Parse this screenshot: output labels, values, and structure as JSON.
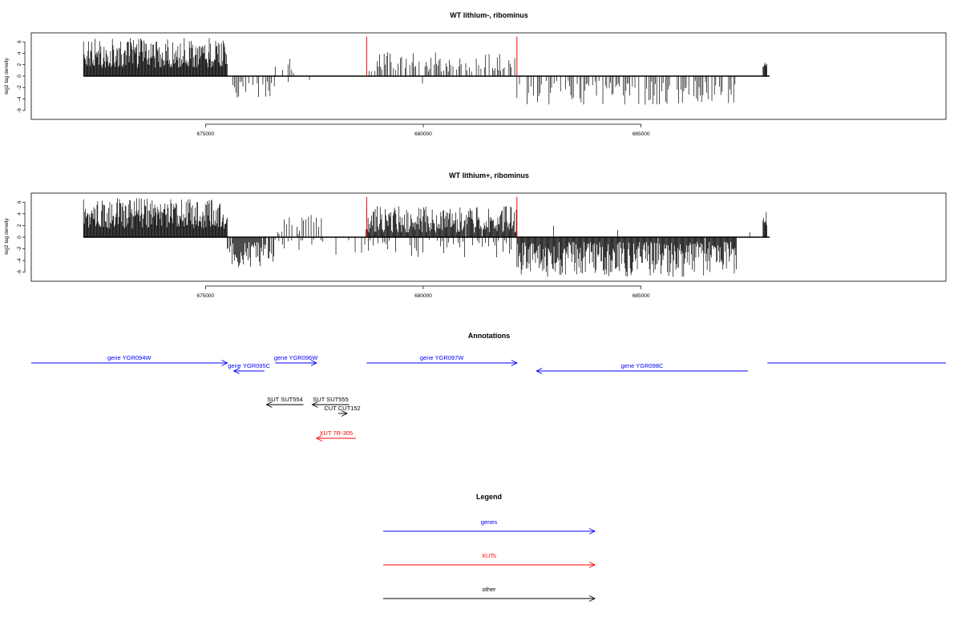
{
  "chart_data": [
    {
      "type": "bar",
      "title": "WT lithium-, ribominus",
      "ylabel": "log2 tag density",
      "xlim": [
        671000,
        692000
      ],
      "ylim": [
        -7,
        7
      ],
      "x_ticks": [
        675000,
        680000,
        685000
      ],
      "x_tick_labels": [
        "675000",
        "680000",
        "685000"
      ],
      "y_ticks": [
        -6,
        -4,
        -2,
        0,
        2,
        4,
        6
      ],
      "y_tick_labels": [
        "-6",
        "-4",
        "-2",
        "0",
        "2",
        "4",
        "6"
      ],
      "markers": [
        678700,
        682150
      ],
      "segments": [
        {
          "from": 672200,
          "to": 675500,
          "sign": 1,
          "min": 1.5,
          "max": 6.7,
          "density": 1.0
        },
        {
          "from": 675500,
          "to": 676600,
          "sign": -1,
          "min": 0.8,
          "max": 3.8,
          "density": 0.45
        },
        {
          "from": 676600,
          "to": 677700,
          "sign": 1,
          "min": 0.5,
          "max": 3.3,
          "density": 0.35
        },
        {
          "from": 676700,
          "to": 677700,
          "sign": -1,
          "min": 0.4,
          "max": 2.0,
          "density": 0.15
        },
        {
          "from": 677700,
          "to": 678700,
          "sign": -1,
          "min": 0.3,
          "max": 1.5,
          "density": 0.1
        },
        {
          "from": 678700,
          "to": 682150,
          "sign": 1,
          "min": 0.8,
          "max": 4.2,
          "density": 0.55
        },
        {
          "from": 679000,
          "to": 682150,
          "sign": -1,
          "min": 0.3,
          "max": 2.0,
          "density": 0.06
        },
        {
          "from": 682150,
          "to": 687200,
          "sign": -1,
          "min": 0.8,
          "max": 5.0,
          "density": 0.5
        },
        {
          "from": 682500,
          "to": 687200,
          "sign": 1,
          "min": 0.3,
          "max": 1.2,
          "density": 0.03
        },
        {
          "from": 687200,
          "to": 687800,
          "sign": 1,
          "min": 0.3,
          "max": 0.8,
          "density": 0.05
        },
        {
          "from": 687800,
          "to": 687900,
          "sign": 1,
          "min": 1.5,
          "max": 2.4,
          "density": 1.0
        }
      ]
    },
    {
      "type": "bar",
      "title": "WT lithium+, ribominus",
      "ylabel": "log2 tag density",
      "xlim": [
        671000,
        692000
      ],
      "ylim": [
        -7,
        7
      ],
      "x_ticks": [
        675000,
        680000,
        685000
      ],
      "x_tick_labels": [
        "675000",
        "680000",
        "685000"
      ],
      "y_ticks": [
        -6,
        -4,
        -2,
        0,
        2,
        4,
        6
      ],
      "y_tick_labels": [
        "-6",
        "-4",
        "-2",
        "0",
        "2",
        "4",
        "6"
      ],
      "markers": [
        678700,
        682150
      ],
      "segments": [
        {
          "from": 672200,
          "to": 675500,
          "sign": 1,
          "min": 1.5,
          "max": 6.7,
          "density": 1.0
        },
        {
          "from": 675500,
          "to": 676600,
          "sign": -1,
          "min": 0.8,
          "max": 5.4,
          "density": 0.8
        },
        {
          "from": 676600,
          "to": 677700,
          "sign": 1,
          "min": 0.5,
          "max": 4.5,
          "density": 0.5
        },
        {
          "from": 676600,
          "to": 677700,
          "sign": -1,
          "min": 0.4,
          "max": 2.6,
          "density": 0.35
        },
        {
          "from": 677700,
          "to": 678700,
          "sign": -1,
          "min": 0.3,
          "max": 3.0,
          "density": 0.2
        },
        {
          "from": 677700,
          "to": 678700,
          "sign": 1,
          "min": 0.3,
          "max": 1.5,
          "density": 0.12
        },
        {
          "from": 678700,
          "to": 682150,
          "sign": 1,
          "min": 0.8,
          "max": 5.3,
          "density": 0.9
        },
        {
          "from": 678700,
          "to": 682150,
          "sign": -1,
          "min": 0.4,
          "max": 3.5,
          "density": 0.4
        },
        {
          "from": 682150,
          "to": 687200,
          "sign": -1,
          "min": 0.8,
          "max": 6.8,
          "density": 0.9
        },
        {
          "from": 682500,
          "to": 687200,
          "sign": 1,
          "min": 0.3,
          "max": 3.0,
          "density": 0.06
        },
        {
          "from": 687200,
          "to": 687800,
          "sign": 1,
          "min": 0.3,
          "max": 1.0,
          "density": 0.1
        },
        {
          "from": 687800,
          "to": 687900,
          "sign": 1,
          "min": 2.0,
          "max": 4.6,
          "density": 1.0
        }
      ]
    }
  ],
  "annotations": {
    "title": "Annotations",
    "genes": [
      {
        "label": "gene YGR094W",
        "from": 671000,
        "to": 675500,
        "dir": "right",
        "row": 1
      },
      {
        "label": "gene YGR095C",
        "from": 675650,
        "to": 676350,
        "dir": "left",
        "row": 2
      },
      {
        "label": "gene YGR096W",
        "from": 676600,
        "to": 677550,
        "dir": "right",
        "row": 1
      },
      {
        "label": "gene YGR097W",
        "from": 678700,
        "to": 682150,
        "dir": "right",
        "row": 1
      },
      {
        "label": "gene YGR098C",
        "from": 682600,
        "to": 687450,
        "dir": "left",
        "row": 2
      },
      {
        "label": "",
        "from": 687900,
        "to": 692000,
        "dir": "none",
        "row": 1
      }
    ],
    "others": [
      {
        "label": "SUT SUT554",
        "from": 676400,
        "to": 677250,
        "dir": "left",
        "row": 1
      },
      {
        "label": "SUT SUT555",
        "from": 677450,
        "to": 678300,
        "dir": "left",
        "row": 1
      },
      {
        "label": "CUT CUT152",
        "from": 678050,
        "to": 678250,
        "dir": "right",
        "row": 2
      }
    ],
    "xuts": [
      {
        "label": "XUT 7R-305",
        "from": 677550,
        "to": 678450,
        "dir": "left",
        "row": 1
      }
    ]
  },
  "legend": {
    "title": "Legend",
    "items": [
      {
        "label": "genes",
        "color": "#0000ff"
      },
      {
        "label": "XUTs",
        "color": "#ff0000"
      },
      {
        "label": "other",
        "color": "#000000"
      }
    ]
  },
  "colors": {
    "gene": "#0000ff",
    "xut": "#ff0000",
    "other": "#000000",
    "marker": "#ff0000"
  }
}
